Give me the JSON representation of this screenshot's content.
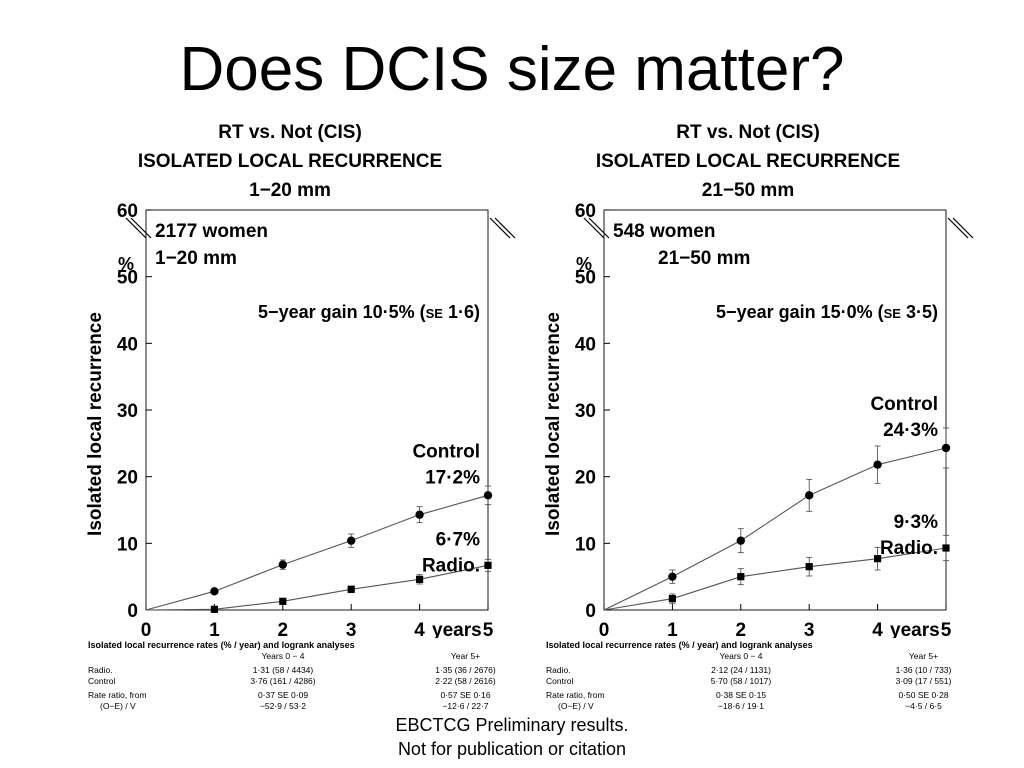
{
  "slide": {
    "title": "Does DCIS size matter?",
    "footnote_line1": "EBCTCG Preliminary results.",
    "footnote_line2": "Not for publication or citation"
  },
  "chart_data": [
    {
      "type": "line",
      "title_lines": [
        "RT vs. Not (CIS)",
        "ISOLATED LOCAL RECURRENCE",
        "1−20 mm"
      ],
      "inset_lines": [
        "2177 women",
        "1−20 mm"
      ],
      "gain_label": "5−year gain 10·5% (",
      "gain_se": "SE",
      "gain_value": " 1·6)",
      "xlabel": "years",
      "ylabel": "Isolated local recurrence",
      "yunit": "%",
      "x": [
        0,
        1,
        2,
        3,
        4,
        5
      ],
      "xlim": [
        0,
        5
      ],
      "ylim": [
        0,
        60
      ],
      "xticks": [
        "0",
        "1",
        "2",
        "3",
        "4",
        "5"
      ],
      "yticks": [
        "0",
        "10",
        "20",
        "30",
        "40",
        "50",
        "60"
      ],
      "series": [
        {
          "name": "Control",
          "marker": "circle",
          "values": [
            0,
            2.8,
            6.8,
            10.4,
            14.3,
            17.2
          ],
          "err": [
            0,
            0.3,
            0.7,
            1.0,
            1.2,
            1.4
          ],
          "end_label_top": "Control",
          "end_label_bottom": "17·2%"
        },
        {
          "name": "Radio.",
          "marker": "square",
          "values": [
            0,
            0.1,
            1.3,
            3.1,
            4.6,
            6.7
          ],
          "err": [
            0,
            0.1,
            0.3,
            0.5,
            0.7,
            0.9
          ],
          "end_label_top": "6·7%",
          "end_label_bottom": "Radio."
        }
      ],
      "table": {
        "caption": "Isolated local recurrence rates (% / year) and logrank analyses",
        "col1_header": "Years 0 − 4",
        "col2_header": "Year 5+",
        "rows": [
          {
            "label": "Radio.",
            "c1": "1·31 (58 / 4434)",
            "c2": "1·35 (36 / 2676)"
          },
          {
            "label": "Control",
            "c1": "3·76 (161 / 4286)",
            "c2": "2·22 (58 / 2616)"
          },
          {
            "label": "Rate ratio, from",
            "c1": "0·37 SE 0·09",
            "c2": "0·57 SE 0·16"
          },
          {
            "label": "(O−E) / V",
            "c1": "−52·9 / 53·2",
            "c2": "−12·6 / 22·7"
          }
        ]
      }
    },
    {
      "type": "line",
      "title_lines": [
        "RT vs. Not (CIS)",
        "ISOLATED LOCAL RECURRENCE",
        "21−50 mm"
      ],
      "inset_lines": [
        "548 women",
        "21−50 mm"
      ],
      "gain_label": "5−year gain 15·0% (",
      "gain_se": "SE",
      "gain_value": " 3·5)",
      "xlabel": "years",
      "ylabel": "Isolated local recurrence",
      "yunit": "%",
      "x": [
        0,
        1,
        2,
        3,
        4,
        5
      ],
      "xlim": [
        0,
        5
      ],
      "ylim": [
        0,
        60
      ],
      "xticks": [
        "0",
        "1",
        "2",
        "3",
        "4",
        "5"
      ],
      "yticks": [
        "0",
        "10",
        "20",
        "30",
        "40",
        "50",
        "60"
      ],
      "series": [
        {
          "name": "Control",
          "marker": "circle",
          "values": [
            0,
            5.0,
            10.4,
            17.2,
            21.8,
            24.3
          ],
          "err": [
            0,
            1.0,
            1.8,
            2.4,
            2.8,
            3.0
          ],
          "end_label_top": "Control",
          "end_label_bottom": "24·3%"
        },
        {
          "name": "Radio.",
          "marker": "square",
          "values": [
            0,
            1.7,
            5.0,
            6.5,
            7.7,
            9.3
          ],
          "err": [
            0,
            0.7,
            1.2,
            1.4,
            1.7,
            1.9
          ],
          "end_label_top": "9·3%",
          "end_label_bottom": "Radio."
        }
      ],
      "table": {
        "caption": "Isolated local recurrence rates (% / year) and logrank analyses",
        "col1_header": "Years 0 − 4",
        "col2_header": "Year 5+",
        "rows": [
          {
            "label": "Radio.",
            "c1": "2·12 (24 / 1131)",
            "c2": "1·36 (10 / 733)"
          },
          {
            "label": "Control",
            "c1": "5·70 (58 / 1017)",
            "c2": "3·09 (17 / 551)"
          },
          {
            "label": "Rate ratio, from",
            "c1": "0·38 SE 0·15",
            "c2": "0·50 SE 0·28"
          },
          {
            "label": "(O−E) / V",
            "c1": "−18·6 / 19·1",
            "c2": "−4·5 / 6·5"
          }
        ]
      }
    }
  ]
}
